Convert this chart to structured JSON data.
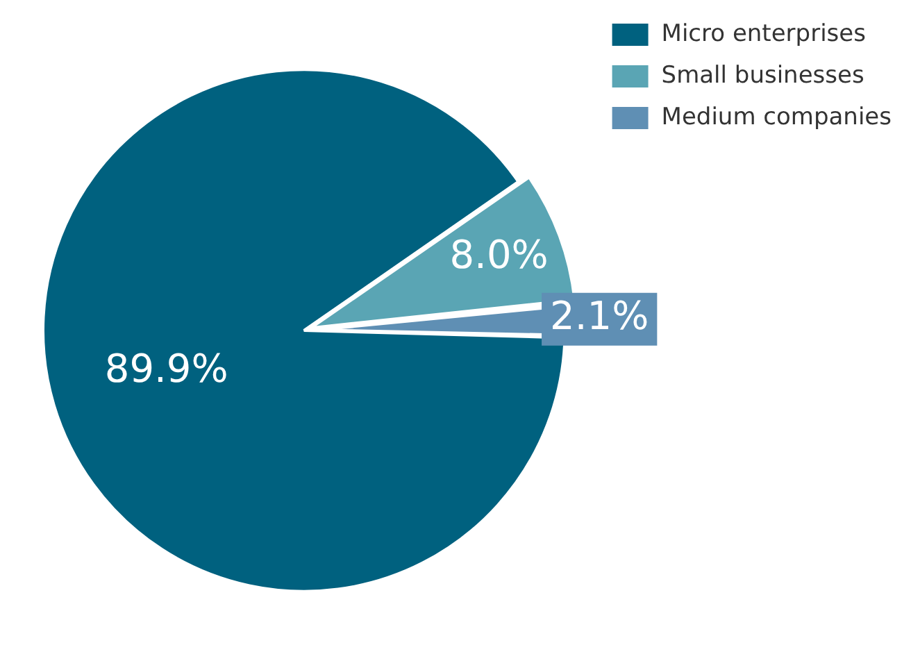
{
  "chart_data": {
    "type": "pie",
    "categories": [
      "Micro enterprises",
      "Small businesses",
      "Medium companies"
    ],
    "values": [
      89.9,
      8.0,
      2.1
    ],
    "colors": [
      "#00617f",
      "#5aa5b4",
      "#5f8fb4"
    ],
    "value_labels": [
      "89.9%",
      "8.0%",
      "2.1%"
    ],
    "legend": "top right"
  }
}
